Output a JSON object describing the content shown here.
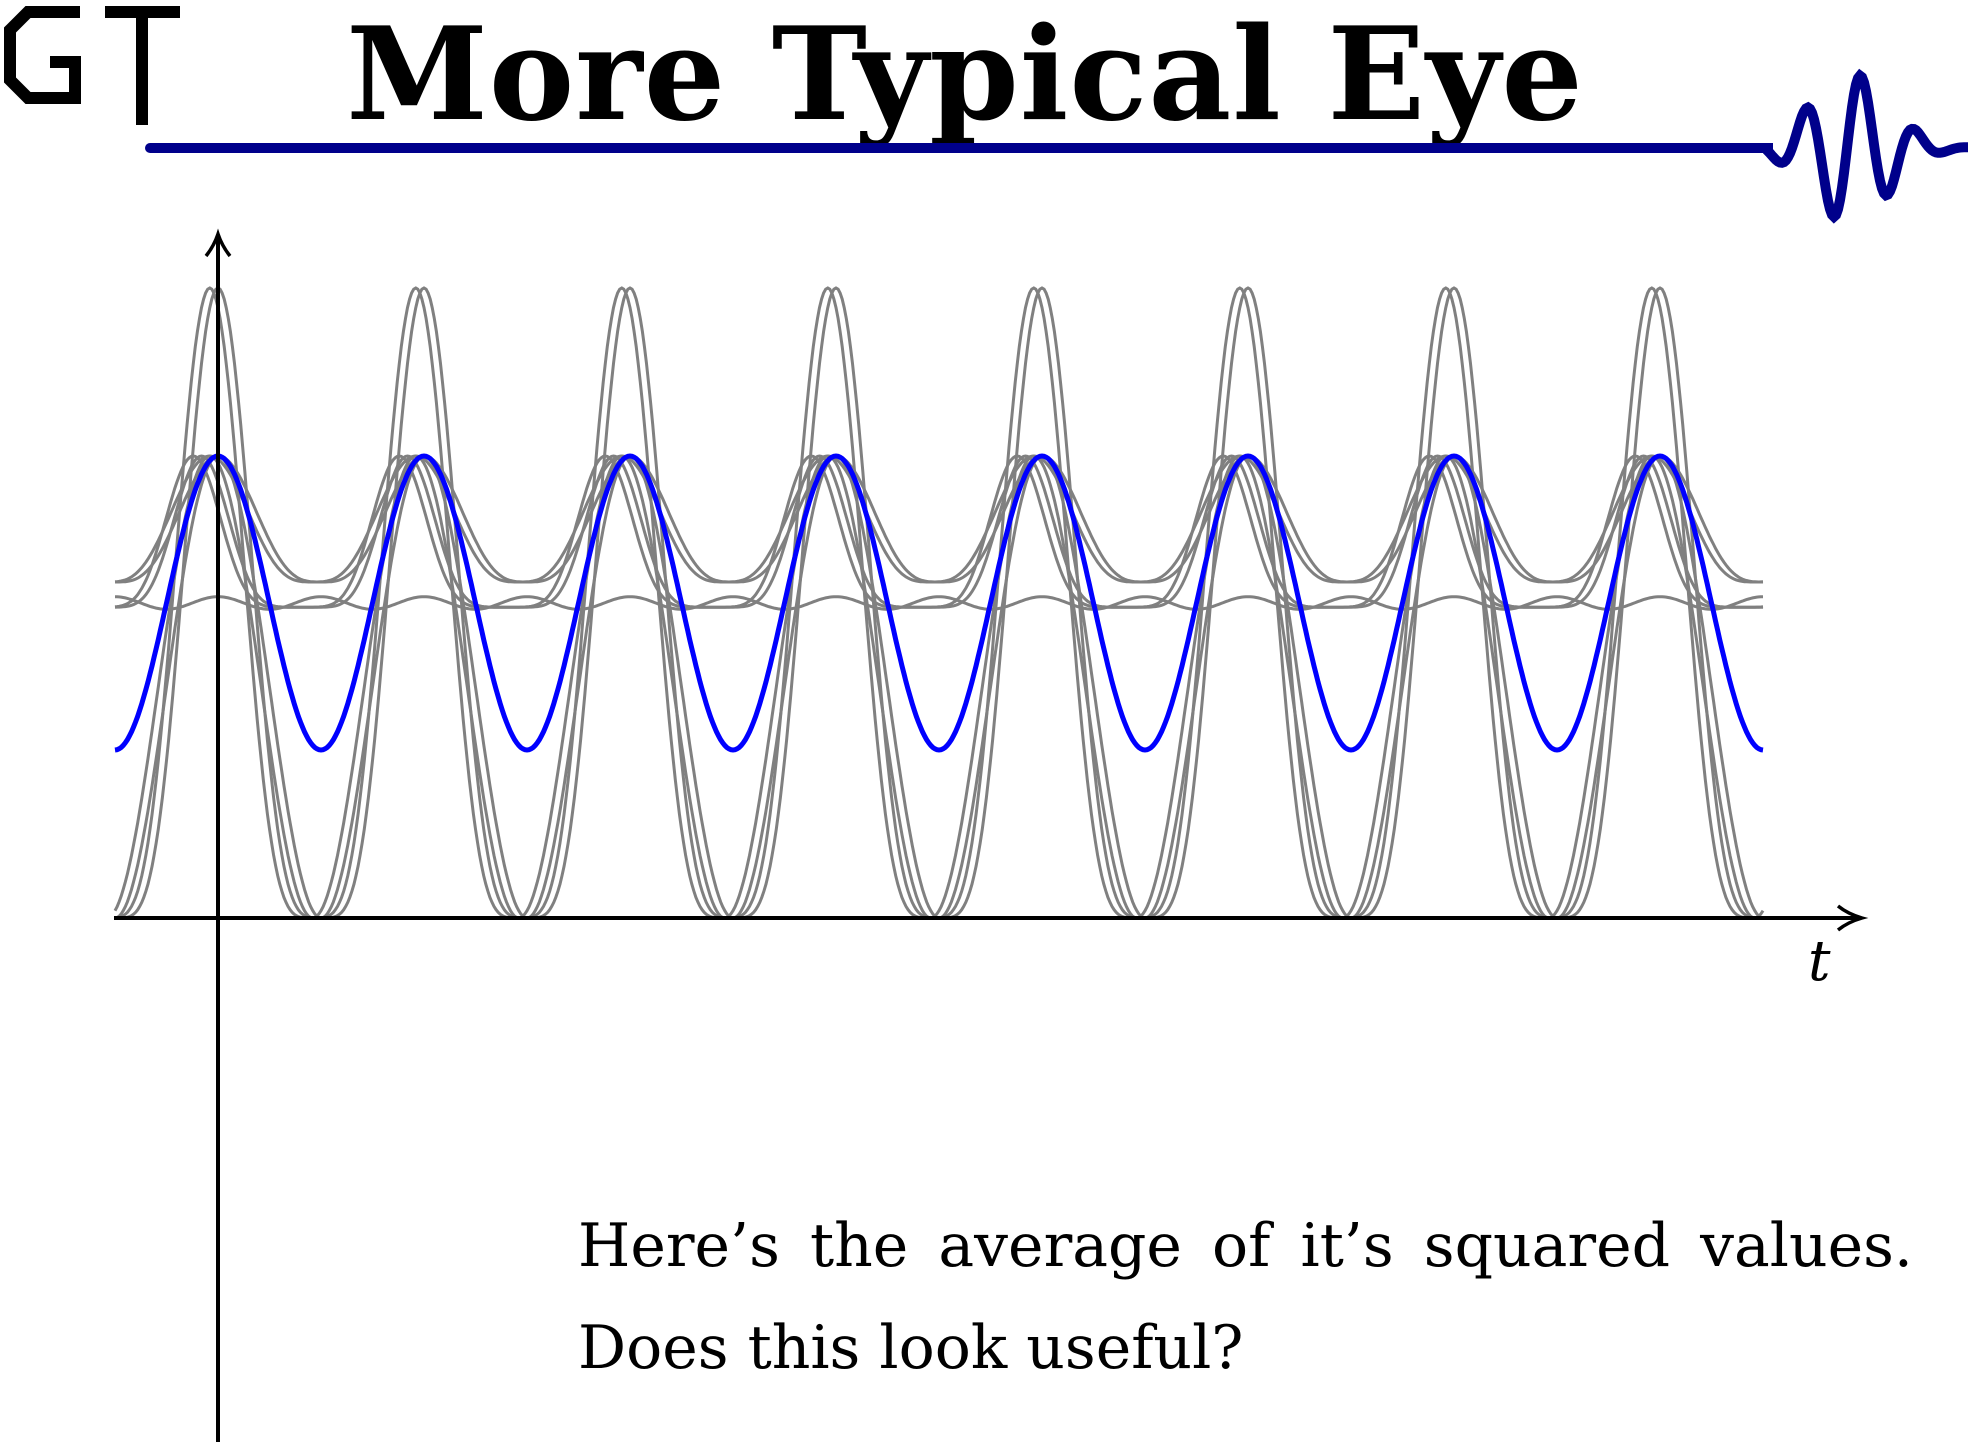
{
  "slide": {
    "title": "More Typical Eye",
    "logo_text": "GT",
    "caption_line1": "Here’s the average of it’s squared values.",
    "caption_line2": "Does this look useful?",
    "accent_color": "#00008b"
  },
  "chart_data": {
    "type": "line",
    "title": "",
    "xlabel": "t",
    "ylabel": "",
    "x_range": [
      -0.5,
      7.5
    ],
    "y_range": [
      0,
      1.5
    ],
    "grid": false,
    "legend": "none",
    "period": 1,
    "series": [
      {
        "color": "#808080",
        "description_values": {
          "peak": 1.5,
          "trough": 0
        }
      },
      {
        "color": "#808080",
        "description_values": {
          "peak": 1.1,
          "trough": 0
        }
      },
      {
        "color": "#808080",
        "description_values": {
          "peak": 1.1,
          "trough": 0.8
        }
      },
      {
        "color": "#808080",
        "description_values": {
          "peak": 1.1,
          "trough": 0.74
        }
      },
      {
        "color": "#808080",
        "description_values": {
          "level": 0.75
        }
      },
      {
        "color": "#0000ff",
        "description_values": {
          "peak": 1.1,
          "trough": 0.4
        }
      }
    ]
  }
}
